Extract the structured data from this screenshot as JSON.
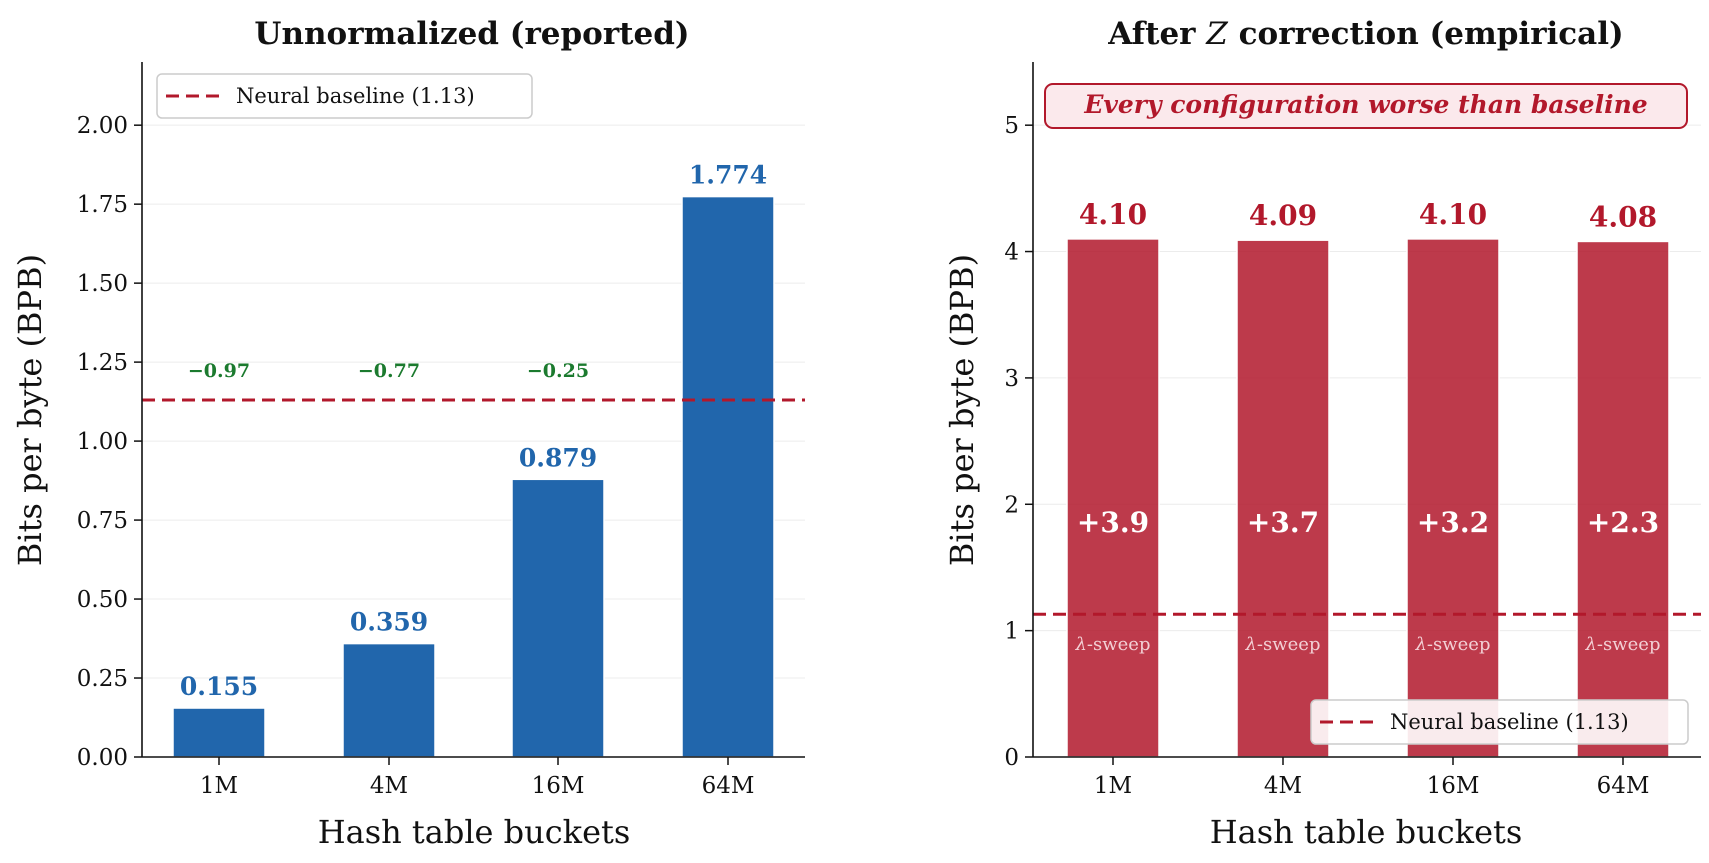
{
  "chart_data": [
    {
      "type": "bar",
      "title": "Unnormalized (reported)",
      "xlabel": "Hash table buckets",
      "ylabel": "Bits per byte (BPB)",
      "categories": [
        "1M",
        "4M",
        "16M",
        "64M"
      ],
      "values": [
        0.155,
        0.359,
        0.879,
        1.774
      ],
      "value_labels": [
        "0.155",
        "0.359",
        "0.879",
        "1.774"
      ],
      "delta_labels": [
        "−0.97",
        "−0.77",
        "−0.25"
      ],
      "ylim": [
        0,
        2.2
      ],
      "yticks": [
        0,
        0.25,
        0.5,
        0.75,
        1.0,
        1.25,
        1.5,
        1.75,
        2.0
      ],
      "ytick_labels": [
        "0.00",
        "0.25",
        "0.50",
        "0.75",
        "1.00",
        "1.25",
        "1.50",
        "1.75",
        "2.00"
      ],
      "baseline": 1.13,
      "legend": "Neural baseline (1.13)",
      "legend_loc": "upper-left",
      "bar_color": "#2166ac",
      "grid": true
    },
    {
      "type": "bar",
      "title_prefix": "After ",
      "title_symbol": "Z",
      "title_suffix": " correction (empirical)",
      "xlabel": "Hash table buckets",
      "ylabel": "Bits per byte (BPB)",
      "categories": [
        "1M",
        "4M",
        "16M",
        "64M"
      ],
      "values": [
        4.1,
        4.09,
        4.1,
        4.08
      ],
      "value_labels": [
        "4.10",
        "4.09",
        "4.10",
        "4.08"
      ],
      "delta_labels": [
        "+3.9",
        "+3.7",
        "+3.2",
        "+2.3"
      ],
      "sweep_symbol": "λ",
      "sweep_text": "-sweep",
      "ylim": [
        0,
        5.5
      ],
      "yticks": [
        0,
        1,
        2,
        3,
        4,
        5
      ],
      "ytick_labels": [
        "0",
        "1",
        "2",
        "3",
        "4",
        "5"
      ],
      "baseline": 1.13,
      "legend": "Neural baseline (1.13)",
      "legend_loc": "lower-right",
      "annotation": "Every configuration worse than baseline",
      "bar_color": "#b2182b",
      "grid": true
    }
  ],
  "colors": {
    "baseline": "#b2182b",
    "green": "#1b7a2e"
  }
}
